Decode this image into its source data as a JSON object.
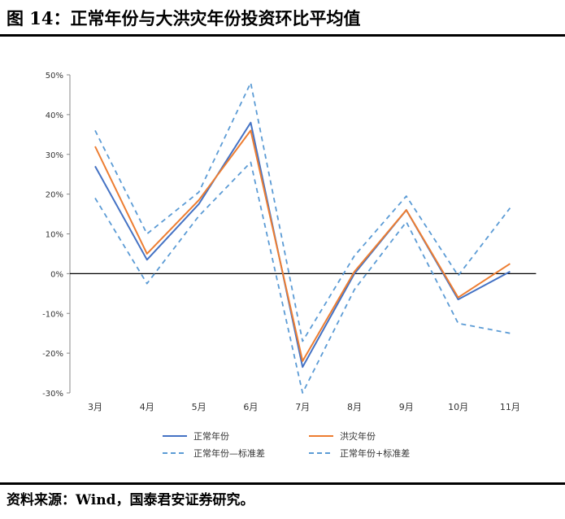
{
  "figure": {
    "title": "图 14：正常年份与大洪灾年份投资环比平均值",
    "source": "资料来源：Wind，国泰君安证券研究。"
  },
  "chart_data": {
    "type": "line",
    "categories": [
      "3月",
      "4月",
      "5月",
      "6月",
      "7月",
      "8月",
      "9月",
      "10月",
      "11月"
    ],
    "y_ticks": [
      "50%",
      "40%",
      "30%",
      "20%",
      "10%",
      "0%",
      "-10%",
      "-20%",
      "-30%"
    ],
    "ylim": [
      -30,
      50
    ],
    "unit": "%",
    "grid": false,
    "legend_position": "bottom",
    "series": [
      {
        "name": "正常年份",
        "color": "#4472C4",
        "dashed": false,
        "values": [
          27,
          3.5,
          17.5,
          38,
          -23.5,
          0,
          16,
          -6.5,
          0.5
        ]
      },
      {
        "name": "洪灾年份",
        "color": "#ED7D31",
        "dashed": false,
        "values": [
          32,
          5,
          18.5,
          36,
          -22,
          0.5,
          16,
          -6,
          2.5
        ]
      },
      {
        "name": "正常年份—标准差",
        "color": "#5B9BD5",
        "dashed": true,
        "values": [
          19,
          -2.5,
          14.5,
          28,
          -30,
          -4,
          13,
          -12.5,
          -15
        ]
      },
      {
        "name": "正常年份+标准差",
        "color": "#5B9BD5",
        "dashed": true,
        "values": [
          36,
          10,
          20.5,
          48,
          -17,
          4.5,
          19.5,
          -0.5,
          16.5
        ]
      }
    ]
  }
}
